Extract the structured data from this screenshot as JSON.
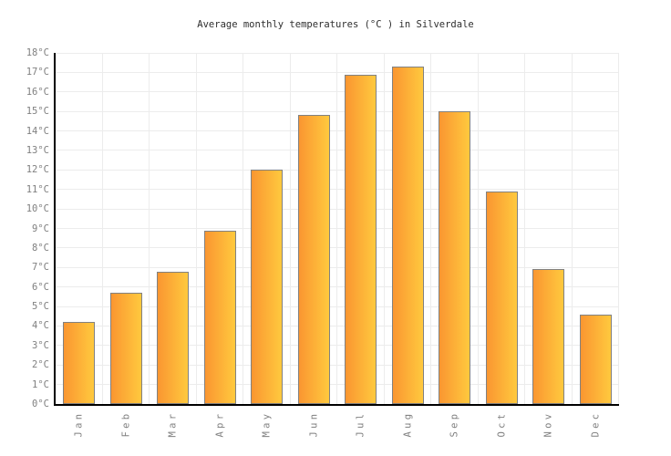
{
  "chart_data": {
    "type": "bar",
    "title": "Average monthly temperatures (°C ) in Silverdale",
    "categories": [
      "Jan",
      "Feb",
      "Mar",
      "Apr",
      "May",
      "Jun",
      "Jul",
      "Aug",
      "Sep",
      "Oct",
      "Nov",
      "Dec"
    ],
    "values": [
      4.2,
      5.7,
      6.8,
      8.9,
      12.0,
      14.8,
      16.9,
      17.3,
      15.0,
      10.9,
      6.9,
      4.6
    ],
    "unit": "°C",
    "xlabel": "",
    "ylabel": "",
    "ylim": [
      0,
      18
    ],
    "ytick_step": 1,
    "ytick_labels": [
      "0°C",
      "1°C",
      "2°C",
      "3°C",
      "4°C",
      "5°C",
      "6°C",
      "7°C",
      "8°C",
      "9°C",
      "10°C",
      "11°C",
      "12°C",
      "13°C",
      "14°C",
      "15°C",
      "16°C",
      "17°C",
      "18°C"
    ],
    "grid": true,
    "legend": null,
    "colors": {
      "bar_gradient_left": "#fa9631",
      "bar_gradient_right": "#ffc93e",
      "bar_border": "#818181",
      "axis": "#000000",
      "grid_line": "#ececec",
      "tick_label": "#808080",
      "title": "#2e2e2e",
      "background": "#ffffff"
    }
  }
}
